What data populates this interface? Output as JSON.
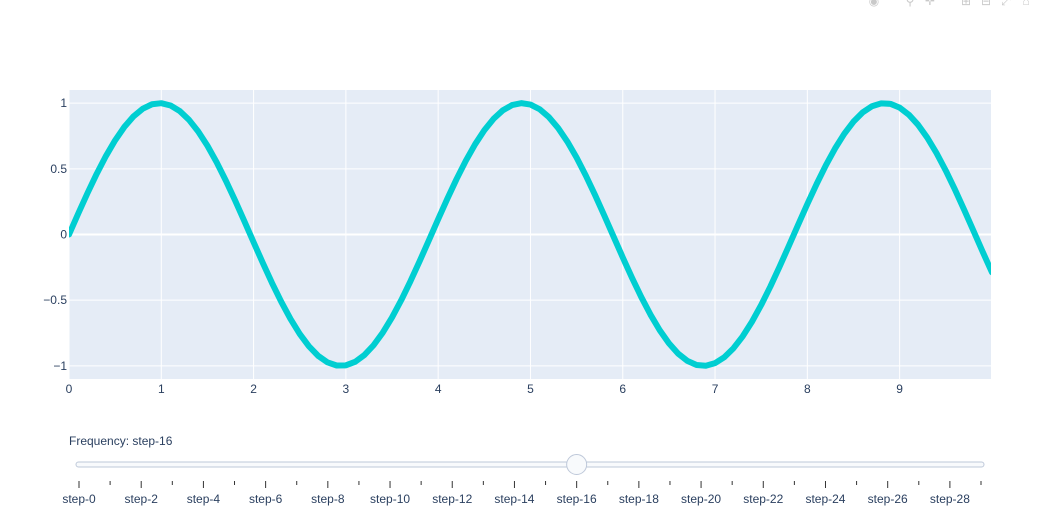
{
  "toolbar": {
    "buttons": [
      {
        "icon": "camera-icon",
        "label": "Download plot as a png",
        "glyph": "◉"
      },
      {
        "icon": "zoom-icon",
        "label": "Zoom",
        "glyph": "⚲"
      },
      {
        "icon": "pan-icon",
        "label": "Pan",
        "glyph": "✛"
      },
      {
        "icon": "zoom-in-icon",
        "label": "Zoom in",
        "glyph": "⊞"
      },
      {
        "icon": "zoom-out-icon",
        "label": "Zoom out",
        "glyph": "⊟"
      },
      {
        "icon": "autoscale-icon",
        "label": "Autoscale",
        "glyph": "⤢"
      },
      {
        "icon": "home-icon",
        "label": "Reset axes",
        "glyph": "⌂"
      }
    ]
  },
  "chart_data": {
    "type": "line",
    "title": "",
    "xlabel": "",
    "ylabel": "",
    "xlim": [
      0,
      9.99
    ],
    "ylim": [
      -1.1,
      1.1
    ],
    "grid": true,
    "x_ticks": [
      0,
      1,
      2,
      3,
      4,
      5,
      6,
      7,
      8,
      9
    ],
    "y_ticks": [
      1,
      0.5,
      0,
      -0.5,
      -1
    ],
    "y_tick_labels": [
      "1",
      "0.5",
      "0",
      "−0.5",
      "−1"
    ],
    "series": [
      {
        "function": "sin(frequency * x)",
        "frequency": 1.6,
        "x_start": 0,
        "x_end": 9.99,
        "x_step": 0.1,
        "color": "#00CED1",
        "line_width": 6
      }
    ],
    "plot_bgcolor": "#E5ECF6",
    "grid_color": "#ffffff"
  },
  "slider": {
    "prefix": "Frequency: ",
    "current": "step-16",
    "active_index": 16,
    "step_count": 30,
    "labels": [
      "step-0",
      "step-2",
      "step-4",
      "step-6",
      "step-8",
      "step-10",
      "step-12",
      "step-14",
      "step-16",
      "step-18",
      "step-20",
      "step-22",
      "step-24",
      "step-26",
      "step-28"
    ]
  }
}
